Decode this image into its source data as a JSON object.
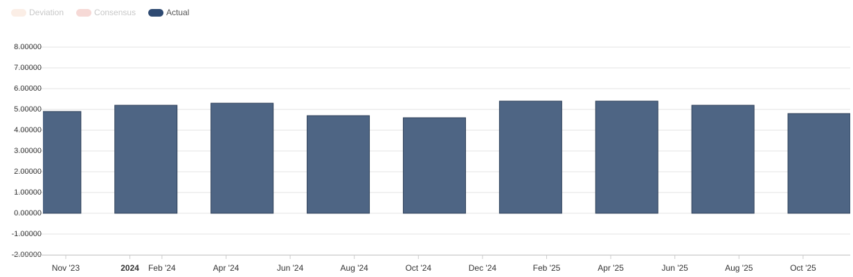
{
  "chart_data": {
    "type": "bar",
    "legend": [
      {
        "name": "Deviation",
        "color": "#fbeee6",
        "active": false
      },
      {
        "name": "Consensus",
        "color": "#f6d9d6",
        "active": false
      },
      {
        "name": "Actual",
        "color": "#2e4a72",
        "active": true
      }
    ],
    "categories": [
      null,
      null,
      null,
      null,
      null,
      null,
      null,
      null,
      null
    ],
    "series": [
      {
        "name": "Actual",
        "color": "#4e6584",
        "values": [
          4.9,
          5.2,
          5.3,
          4.7,
          4.6,
          5.4,
          5.4,
          5.2,
          4.8
        ]
      }
    ],
    "xtick_labels": [
      "Nov '23",
      "2024",
      "Feb '24",
      "Apr '24",
      "Jun '24",
      "Aug '24",
      "Oct '24",
      "Dec '24",
      "Feb '25",
      "Apr '25",
      "Jun '25",
      "Aug '25",
      "Oct '25"
    ],
    "ylim": [
      -2,
      8
    ],
    "yticks": [
      {
        "value": -2,
        "label": "-2.00000"
      },
      {
        "value": -1,
        "label": "-1.00000"
      },
      {
        "value": 0,
        "label": "0.00000"
      },
      {
        "value": 1,
        "label": "1.00000"
      },
      {
        "value": 2,
        "label": "2.00000"
      },
      {
        "value": 3,
        "label": "3.00000"
      },
      {
        "value": 4,
        "label": "4.00000"
      },
      {
        "value": 5,
        "label": "5.00000"
      },
      {
        "value": 6,
        "label": "6.00000"
      },
      {
        "value": 7,
        "label": "7.00000"
      },
      {
        "value": 8,
        "label": "8.00000"
      }
    ],
    "grid": true
  }
}
